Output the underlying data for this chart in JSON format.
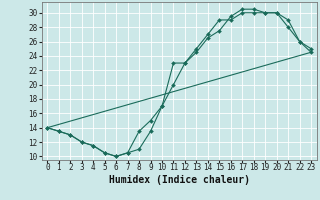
{
  "xlabel": "Humidex (Indice chaleur)",
  "bg_color": "#cce8e8",
  "line_color": "#1a6b5a",
  "grid_color": "#ffffff",
  "xlim": [
    -0.5,
    23.5
  ],
  "ylim": [
    9.5,
    31.5
  ],
  "xticks": [
    0,
    1,
    2,
    3,
    4,
    5,
    6,
    7,
    8,
    9,
    10,
    11,
    12,
    13,
    14,
    15,
    16,
    17,
    18,
    19,
    20,
    21,
    22,
    23
  ],
  "yticks": [
    10,
    12,
    14,
    16,
    18,
    20,
    22,
    24,
    26,
    28,
    30
  ],
  "line1_x": [
    0,
    1,
    2,
    3,
    4,
    5,
    6,
    7,
    8,
    9,
    10,
    11,
    12,
    13,
    14,
    15,
    16,
    17,
    18,
    19,
    20,
    21,
    22,
    23
  ],
  "line1_y": [
    14,
    13.5,
    13,
    12,
    11.5,
    10.5,
    10,
    10.5,
    11,
    13.5,
    17,
    20,
    23,
    25,
    27,
    29,
    29,
    30,
    30,
    30,
    30,
    29,
    26,
    25
  ],
  "line2_x": [
    0,
    1,
    2,
    3,
    4,
    5,
    6,
    7,
    8,
    9,
    10,
    11,
    12,
    13,
    14,
    15,
    16,
    17,
    18,
    19,
    20,
    21,
    22,
    23
  ],
  "line2_y": [
    14,
    13.5,
    13,
    12,
    11.5,
    10.5,
    10,
    10.5,
    13.5,
    15,
    17,
    23,
    23,
    24.5,
    26.5,
    27.5,
    29.5,
    30.5,
    30.5,
    30,
    30,
    28,
    26,
    24.5
  ],
  "line3_x": [
    0,
    23
  ],
  "line3_y": [
    14,
    24.5
  ],
  "tick_fontsize": 5.5,
  "xlabel_fontsize": 7.0
}
